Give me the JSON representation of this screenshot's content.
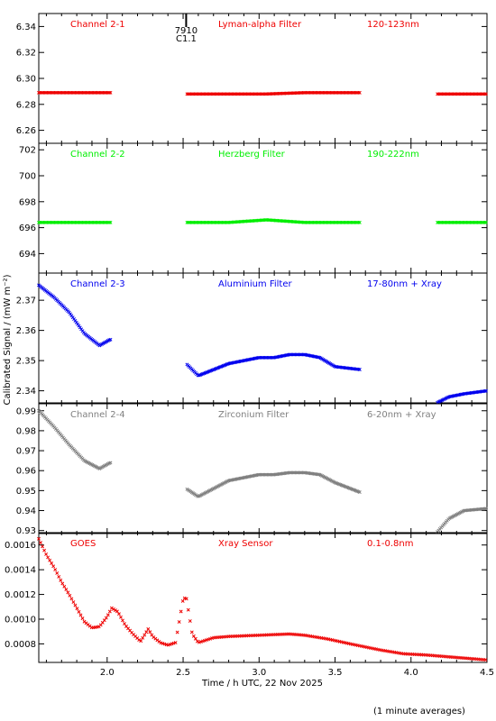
{
  "chart_data": {
    "type": "scatter",
    "xlabel": "Time / h UTC, 22 Nov 2025",
    "ylabel": "Calibrated Signal / (mW m⁻²)",
    "footnote": "(1 minute averages)",
    "xlim": [
      1.55,
      4.5
    ],
    "xticks": [
      2.0,
      2.5,
      3.0,
      3.5,
      4.0,
      4.5
    ],
    "xtick_labels": [
      "2.0",
      "2.5",
      "3.0",
      "3.5",
      "4.0",
      "4.5"
    ],
    "marker": {
      "time": 2.52,
      "labels": [
        "7910",
        "C1.1"
      ]
    },
    "panels": [
      {
        "id": "ch2-1",
        "channel": "Channel 2-1",
        "filter": "Lyman-alpha Filter",
        "band": "120-123nm",
        "color": "#ee0000",
        "ylim": [
          6.25,
          6.35
        ],
        "yticks": [
          6.26,
          6.28,
          6.3,
          6.32,
          6.34
        ],
        "ytick_labels": [
          "6.26",
          "6.28",
          "6.30",
          "6.32",
          "6.34"
        ],
        "x": [
          1.55,
          1.8,
          2.02,
          2.52,
          2.8,
          3.05,
          3.3,
          3.67,
          4.17,
          4.35,
          4.5
        ],
        "y": [
          6.289,
          6.289,
          6.289,
          6.288,
          6.288,
          6.288,
          6.289,
          6.289,
          6.288,
          6.288,
          6.288
        ],
        "segments": [
          [
            1.55,
            2.03
          ],
          [
            2.52,
            3.67
          ],
          [
            4.17,
            4.5
          ]
        ]
      },
      {
        "id": "ch2-2",
        "channel": "Channel 2-2",
        "filter": "Herzberg Filter",
        "band": "190-222nm",
        "color": "#00ee00",
        "ylim": [
          692.5,
          702.5
        ],
        "yticks": [
          694,
          696,
          698,
          700,
          702
        ],
        "ytick_labels": [
          "694",
          "696",
          "698",
          "700",
          "702"
        ],
        "x": [
          1.55,
          1.8,
          2.02,
          2.52,
          2.8,
          3.05,
          3.3,
          3.67,
          4.17,
          4.35,
          4.5
        ],
        "y": [
          696.4,
          696.4,
          696.4,
          696.4,
          696.4,
          696.6,
          696.4,
          696.4,
          696.4,
          696.4,
          696.4
        ],
        "segments": [
          [
            1.55,
            2.03
          ],
          [
            2.52,
            3.67
          ],
          [
            4.17,
            4.5
          ]
        ]
      },
      {
        "id": "ch2-3",
        "channel": "Channel 2-3",
        "filter": "Aluminium Filter",
        "band": "17-80nm + Xray",
        "color": "#0000ee",
        "ylim": [
          2.336,
          2.379
        ],
        "yticks": [
          2.34,
          2.35,
          2.36,
          2.37
        ],
        "ytick_labels": [
          "2.34",
          "2.35",
          "2.36",
          "2.37"
        ],
        "x": [
          1.55,
          1.65,
          1.75,
          1.85,
          1.95,
          2.02,
          2.52,
          2.6,
          2.8,
          3.0,
          3.1,
          3.2,
          3.3,
          3.4,
          3.5,
          3.67,
          4.17,
          4.25,
          4.35,
          4.5
        ],
        "y": [
          2.375,
          2.371,
          2.366,
          2.359,
          2.355,
          2.357,
          2.349,
          2.345,
          2.349,
          2.351,
          2.351,
          2.352,
          2.352,
          2.351,
          2.348,
          2.347,
          2.336,
          2.338,
          2.339,
          2.34
        ]
      },
      {
        "id": "ch2-4",
        "channel": "Channel 2-4",
        "filter": "Zirconium Filter",
        "band": "6-20nm + Xray",
        "color": "#808080",
        "ylim": [
          0.9285,
          0.9935
        ],
        "yticks": [
          0.93,
          0.94,
          0.95,
          0.96,
          0.97,
          0.98,
          0.99
        ],
        "ytick_labels": [
          "0.93",
          "0.94",
          "0.95",
          "0.96",
          "0.97",
          "0.98",
          "0.99"
        ],
        "x": [
          1.55,
          1.65,
          1.75,
          1.85,
          1.95,
          2.02,
          2.52,
          2.6,
          2.8,
          3.0,
          3.1,
          3.2,
          3.3,
          3.4,
          3.5,
          3.67,
          4.17,
          4.25,
          4.35,
          4.5
        ],
        "y": [
          0.99,
          0.982,
          0.973,
          0.965,
          0.961,
          0.964,
          0.951,
          0.947,
          0.955,
          0.958,
          0.958,
          0.959,
          0.959,
          0.958,
          0.954,
          0.949,
          0.929,
          0.936,
          0.94,
          0.941
        ]
      },
      {
        "id": "goes",
        "channel": "GOES",
        "filter": "Xray Sensor",
        "band": "0.1-0.8nm",
        "color": "#ee0000",
        "ylim": [
          0.00065,
          0.0017
        ],
        "yticks": [
          0.0008,
          0.001,
          0.0012,
          0.0014,
          0.0016
        ],
        "ytick_labels": [
          "0.0008",
          "0.0010",
          "0.0012",
          "0.0014",
          "0.0016"
        ],
        "x": [
          1.55,
          1.6,
          1.65,
          1.7,
          1.75,
          1.8,
          1.85,
          1.9,
          1.95,
          2.0,
          2.03,
          2.07,
          2.12,
          2.17,
          2.22,
          2.27,
          2.3,
          2.35,
          2.4,
          2.45,
          2.5,
          2.52,
          2.56,
          2.6,
          2.7,
          2.8,
          3.0,
          3.2,
          3.3,
          3.45,
          3.6,
          3.8,
          3.95,
          4.1,
          4.3,
          4.5
        ],
        "y": [
          0.00165,
          0.00152,
          0.00142,
          0.0013,
          0.0012,
          0.00109,
          0.00098,
          0.00093,
          0.00094,
          0.00102,
          0.00109,
          0.00106,
          0.00095,
          0.00088,
          0.00082,
          0.00092,
          0.00086,
          0.00081,
          0.00079,
          0.00081,
          0.00116,
          0.00118,
          0.00088,
          0.00081,
          0.00085,
          0.00086,
          0.00087,
          0.00088,
          0.00087,
          0.00084,
          0.0008,
          0.00075,
          0.00072,
          0.00071,
          0.00069,
          0.00067
        ]
      }
    ]
  }
}
